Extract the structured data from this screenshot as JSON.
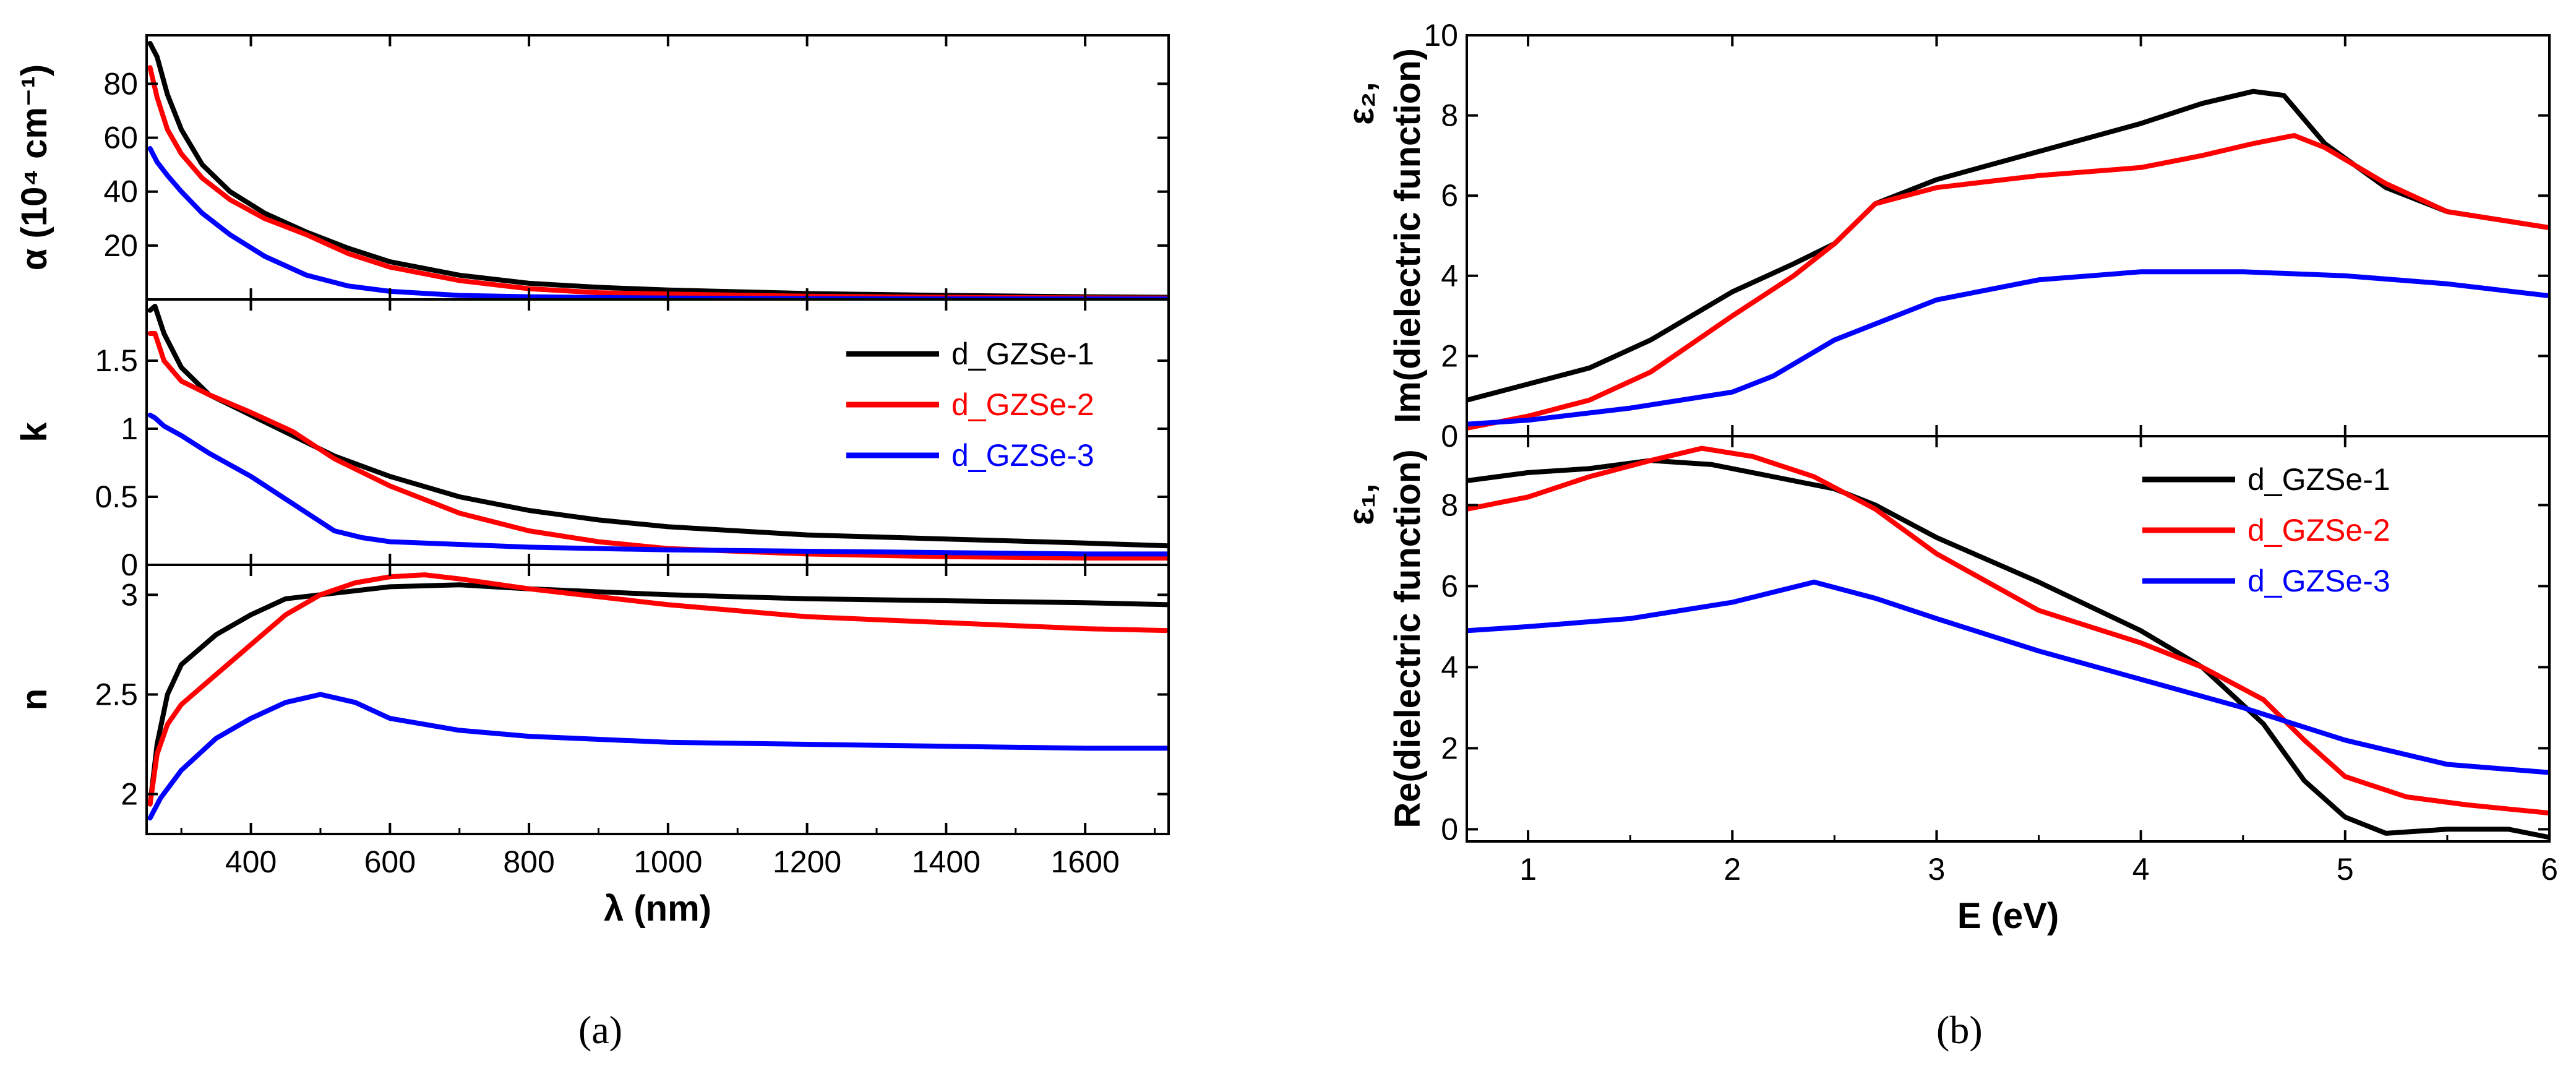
{
  "chart_data": [
    {
      "panel": "(a)",
      "type": "line",
      "xlabel": "λ (nm)",
      "xlim": [
        250,
        1720
      ],
      "xticks": [
        400,
        600,
        800,
        1000,
        1200,
        1400,
        1600
      ],
      "subplots": [
        {
          "id": "alpha",
          "ylabel": "α (10⁴ cm⁻¹)",
          "ylim": [
            0,
            98
          ],
          "yticks": [
            20,
            40,
            60,
            80
          ],
          "series": [
            {
              "name": "d_GZSe-1",
              "color": "#000000",
              "x": [
                255,
                265,
                280,
                300,
                330,
                370,
                420,
                480,
                540,
                600,
                700,
                800,
                900,
                1000,
                1200,
                1400,
                1600,
                1720
              ],
              "y": [
                95,
                90,
                76,
                63,
                50,
                40,
                32,
                25,
                19,
                14,
                9,
                6,
                4.5,
                3.5,
                2.2,
                1.5,
                1.0,
                0.8
              ]
            },
            {
              "name": "d_GZSe-2",
              "color": "#ff0000",
              "x": [
                255,
                265,
                280,
                300,
                330,
                370,
                420,
                480,
                540,
                600,
                700,
                800,
                900,
                1000,
                1200,
                1400,
                1600,
                1720
              ],
              "y": [
                86,
                75,
                63,
                54,
                45,
                37,
                30,
                24,
                17,
                12,
                7,
                4,
                2.5,
                2,
                1.2,
                0.8,
                0.6,
                0.5
              ]
            },
            {
              "name": "d_GZSe-3",
              "color": "#0000ff",
              "x": [
                255,
                265,
                280,
                300,
                330,
                370,
                420,
                480,
                540,
                600,
                700,
                800,
                900,
                1000,
                1200,
                1400,
                1600,
                1720
              ],
              "y": [
                56,
                51,
                46,
                40,
                32,
                24,
                16,
                9,
                5,
                3,
                1.5,
                1,
                0.7,
                0.5,
                0.3,
                0.2,
                0.2,
                0.2
              ]
            }
          ]
        },
        {
          "id": "k",
          "ylabel": "k",
          "ylim": [
            0,
            1.95
          ],
          "yticks": [
            0.0,
            0.5,
            1.0,
            1.5
          ],
          "series": [
            {
              "name": "d_GZSe-1",
              "color": "#000000",
              "x": [
                255,
                262,
                275,
                300,
                340,
                400,
                460,
                520,
                600,
                700,
                800,
                900,
                1000,
                1200,
                1400,
                1600,
                1720
              ],
              "y": [
                1.87,
                1.9,
                1.7,
                1.45,
                1.25,
                1.1,
                0.95,
                0.8,
                0.65,
                0.5,
                0.4,
                0.33,
                0.28,
                0.22,
                0.19,
                0.16,
                0.14
              ]
            },
            {
              "name": "d_GZSe-2",
              "color": "#ff0000",
              "x": [
                255,
                262,
                275,
                300,
                340,
                400,
                460,
                520,
                600,
                700,
                800,
                900,
                1000,
                1200,
                1400,
                1600,
                1720
              ],
              "y": [
                1.7,
                1.7,
                1.5,
                1.35,
                1.25,
                1.12,
                0.98,
                0.78,
                0.58,
                0.38,
                0.25,
                0.17,
                0.12,
                0.08,
                0.06,
                0.05,
                0.05
              ]
            },
            {
              "name": "d_GZSe-3",
              "color": "#0000ff",
              "x": [
                255,
                262,
                275,
                300,
                340,
                400,
                460,
                520,
                560,
                600,
                700,
                800,
                900,
                1000,
                1200,
                1400,
                1600,
                1720
              ],
              "y": [
                1.1,
                1.08,
                1.02,
                0.95,
                0.82,
                0.65,
                0.45,
                0.25,
                0.2,
                0.17,
                0.15,
                0.13,
                0.12,
                0.11,
                0.1,
                0.09,
                0.08,
                0.08
              ]
            }
          ],
          "legend": {
            "position": "top-right",
            "entries": [
              "d_GZSe-1",
              "d_GZSe-2",
              "d_GZSe-3"
            ]
          }
        },
        {
          "id": "n",
          "ylabel": "n",
          "ylim": [
            1.8,
            3.15
          ],
          "yticks": [
            2.0,
            2.5,
            3.0
          ],
          "series": [
            {
              "name": "d_GZSe-1",
              "color": "#000000",
              "x": [
                255,
                265,
                280,
                300,
                350,
                400,
                450,
                500,
                550,
                600,
                700,
                800,
                1000,
                1200,
                1400,
                1600,
                1720
              ],
              "y": [
                1.95,
                2.25,
                2.5,
                2.65,
                2.8,
                2.9,
                2.98,
                3.0,
                3.02,
                3.04,
                3.05,
                3.03,
                3.0,
                2.98,
                2.97,
                2.96,
                2.95
              ]
            },
            {
              "name": "d_GZSe-2",
              "color": "#ff0000",
              "x": [
                255,
                265,
                280,
                300,
                350,
                400,
                450,
                500,
                550,
                600,
                650,
                700,
                800,
                1000,
                1200,
                1400,
                1600,
                1720
              ],
              "y": [
                1.95,
                2.2,
                2.35,
                2.45,
                2.6,
                2.75,
                2.9,
                3.0,
                3.06,
                3.09,
                3.1,
                3.08,
                3.03,
                2.95,
                2.89,
                2.86,
                2.83,
                2.82
              ]
            },
            {
              "name": "d_GZSe-3",
              "color": "#0000ff",
              "x": [
                255,
                270,
                300,
                350,
                400,
                450,
                500,
                550,
                600,
                700,
                800,
                1000,
                1200,
                1400,
                1600,
                1720
              ],
              "y": [
                1.88,
                1.98,
                2.12,
                2.28,
                2.38,
                2.46,
                2.5,
                2.46,
                2.38,
                2.32,
                2.29,
                2.26,
                2.25,
                2.24,
                2.23,
                2.23
              ]
            }
          ]
        }
      ]
    },
    {
      "panel": "(b)",
      "type": "line",
      "xlabel": "E (eV)",
      "xlim": [
        0.7,
        6
      ],
      "xticks": [
        1,
        2,
        3,
        4,
        5,
        6
      ],
      "subplots": [
        {
          "id": "eps2",
          "ylabel_top": "ε₂,",
          "ylabel": "Im(dielectric function)",
          "ylim": [
            0,
            10
          ],
          "yticks": [
            0,
            2,
            4,
            6,
            8,
            10
          ],
          "series": [
            {
              "name": "d_GZSe-1",
              "color": "#000000",
              "x": [
                0.7,
                1.0,
                1.3,
                1.6,
                2.0,
                2.3,
                2.5,
                2.7,
                3.0,
                3.5,
                4.0,
                4.3,
                4.55,
                4.7,
                4.9,
                5.2,
                5.5,
                6.0
              ],
              "y": [
                0.9,
                1.3,
                1.7,
                2.4,
                3.6,
                4.3,
                4.8,
                5.8,
                6.4,
                7.1,
                7.8,
                8.3,
                8.6,
                8.5,
                7.3,
                6.2,
                5.6,
                5.2
              ]
            },
            {
              "name": "d_GZSe-2",
              "color": "#ff0000",
              "x": [
                0.7,
                1.0,
                1.3,
                1.6,
                2.0,
                2.3,
                2.5,
                2.7,
                3.0,
                3.5,
                4.0,
                4.3,
                4.55,
                4.75,
                4.9,
                5.2,
                5.5,
                6.0
              ],
              "y": [
                0.2,
                0.5,
                0.9,
                1.6,
                3.0,
                4.0,
                4.8,
                5.8,
                6.2,
                6.5,
                6.7,
                7.0,
                7.3,
                7.5,
                7.2,
                6.3,
                5.6,
                5.2
              ]
            },
            {
              "name": "d_GZSe-3",
              "color": "#0000ff",
              "x": [
                0.7,
                1.0,
                1.5,
                2.0,
                2.2,
                2.5,
                2.8,
                3.0,
                3.5,
                4.0,
                4.5,
                5.0,
                5.5,
                6.0
              ],
              "y": [
                0.3,
                0.4,
                0.7,
                1.1,
                1.5,
                2.4,
                3.0,
                3.4,
                3.9,
                4.1,
                4.1,
                4.0,
                3.8,
                3.5
              ]
            }
          ]
        },
        {
          "id": "eps1",
          "ylabel_top": "ε₁,",
          "ylabel": "Re(dielectric function)",
          "ylim": [
            -0.3,
            9.7
          ],
          "yticks": [
            0,
            2,
            4,
            6,
            8
          ],
          "series": [
            {
              "name": "d_GZSe-1",
              "color": "#000000",
              "x": [
                0.7,
                1.0,
                1.3,
                1.6,
                1.9,
                2.2,
                2.5,
                2.7,
                3.0,
                3.5,
                4.0,
                4.3,
                4.6,
                4.8,
                5.0,
                5.2,
                5.5,
                5.8,
                6.0
              ],
              "y": [
                8.6,
                8.8,
                8.9,
                9.1,
                9.0,
                8.7,
                8.4,
                8.0,
                7.2,
                6.1,
                4.9,
                4.0,
                2.6,
                1.2,
                0.3,
                -0.1,
                0.0,
                0.0,
                -0.2
              ]
            },
            {
              "name": "d_GZSe-2",
              "color": "#ff0000",
              "x": [
                0.7,
                1.0,
                1.3,
                1.6,
                1.85,
                2.1,
                2.4,
                2.7,
                3.0,
                3.5,
                4.0,
                4.3,
                4.6,
                4.8,
                5.0,
                5.3,
                5.6,
                6.0
              ],
              "y": [
                7.9,
                8.2,
                8.7,
                9.1,
                9.4,
                9.2,
                8.7,
                7.9,
                6.8,
                5.4,
                4.6,
                4.0,
                3.2,
                2.2,
                1.3,
                0.8,
                0.6,
                0.4
              ]
            },
            {
              "name": "d_GZSe-3",
              "color": "#0000ff",
              "x": [
                0.7,
                1.0,
                1.5,
                2.0,
                2.4,
                2.7,
                3.0,
                3.5,
                4.0,
                4.5,
                5.0,
                5.5,
                6.0
              ],
              "y": [
                4.9,
                5.0,
                5.2,
                5.6,
                6.1,
                5.7,
                5.2,
                4.4,
                3.7,
                3.0,
                2.2,
                1.6,
                1.4
              ]
            }
          ],
          "legend": {
            "position": "top-right",
            "entries": [
              "d_GZSe-1",
              "d_GZSe-2",
              "d_GZSe-3"
            ]
          }
        }
      ]
    }
  ],
  "captions": {
    "a": "(a)",
    "b": "(b)"
  }
}
